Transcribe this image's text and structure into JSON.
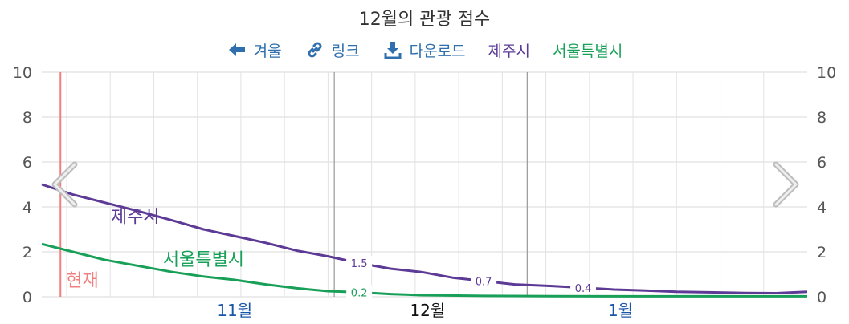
{
  "title": "12월의 관광 점수",
  "toolbar": {
    "back": {
      "label": "겨울",
      "icon": "arrow-left-icon"
    },
    "link": {
      "label": "링크",
      "icon": "link-icon"
    },
    "download": {
      "label": "다운로드",
      "icon": "download-icon"
    }
  },
  "legend": {
    "jeju": "제주시",
    "seoul": "서울특별시"
  },
  "now_label": "현재",
  "colors": {
    "jeju": "#5c3a96",
    "seoul": "#18a058",
    "now": "#f08080",
    "link": "#2f6fad",
    "month": "#1a56a8"
  },
  "chart_data": {
    "type": "line",
    "title": "12월의 관광 점수",
    "ylim": [
      0,
      10
    ],
    "yticks": [
      "0",
      "2",
      "4",
      "6",
      "8",
      "10"
    ],
    "x_start": "2023-10-15",
    "x_end": "2024-02-15",
    "month_ticks": [
      {
        "label": "11월",
        "date": "2023-11-15",
        "current": false
      },
      {
        "label": "12월",
        "date": "2023-12-16",
        "current": true
      },
      {
        "label": "1월",
        "date": "2024-01-16",
        "current": false
      }
    ],
    "now_date": "2023-10-18",
    "series": [
      {
        "name": "제주시",
        "color": "#5c3a96",
        "points": [
          [
            "2023-10-15",
            5.0
          ],
          [
            "2023-10-20",
            4.55
          ],
          [
            "2023-10-25",
            4.2
          ],
          [
            "2023-10-30",
            3.85
          ],
          [
            "2023-11-05",
            3.4
          ],
          [
            "2023-11-10",
            3.0
          ],
          [
            "2023-11-15",
            2.7
          ],
          [
            "2023-11-20",
            2.4
          ],
          [
            "2023-11-25",
            2.05
          ],
          [
            "2023-11-30",
            1.8
          ],
          [
            "2023-12-05",
            1.5
          ],
          [
            "2023-12-10",
            1.25
          ],
          [
            "2023-12-15",
            1.1
          ],
          [
            "2023-12-20",
            0.85
          ],
          [
            "2023-12-25",
            0.7
          ],
          [
            "2023-12-30",
            0.55
          ],
          [
            "2024-01-05",
            0.48
          ],
          [
            "2024-01-10",
            0.4
          ],
          [
            "2024-01-15",
            0.32
          ],
          [
            "2024-01-20",
            0.28
          ],
          [
            "2024-01-25",
            0.22
          ],
          [
            "2024-01-30",
            0.2
          ],
          [
            "2024-02-05",
            0.17
          ],
          [
            "2024-02-10",
            0.16
          ],
          [
            "2024-02-15",
            0.22
          ]
        ],
        "labels": [
          {
            "date": "2023-12-05",
            "value": 1.5,
            "text": "1.5"
          },
          {
            "date": "2023-12-25",
            "value": 0.7,
            "text": "0.7"
          },
          {
            "date": "2024-01-10",
            "value": 0.4,
            "text": "0.4"
          }
        ],
        "inline_label": {
          "date": "2023-10-30",
          "value": 3.3,
          "text": "제주시"
        }
      },
      {
        "name": "서울특별시",
        "color": "#18a058",
        "points": [
          [
            "2023-10-15",
            2.35
          ],
          [
            "2023-10-20",
            2.0
          ],
          [
            "2023-10-25",
            1.65
          ],
          [
            "2023-10-30",
            1.4
          ],
          [
            "2023-11-05",
            1.1
          ],
          [
            "2023-11-10",
            0.9
          ],
          [
            "2023-11-15",
            0.75
          ],
          [
            "2023-11-20",
            0.55
          ],
          [
            "2023-11-25",
            0.38
          ],
          [
            "2023-11-30",
            0.25
          ],
          [
            "2023-12-05",
            0.2
          ],
          [
            "2023-12-10",
            0.12
          ],
          [
            "2023-12-15",
            0.07
          ],
          [
            "2023-12-25",
            0.04
          ],
          [
            "2024-01-05",
            0.03
          ],
          [
            "2024-01-20",
            0.02
          ],
          [
            "2024-02-15",
            0.02
          ]
        ],
        "labels": [
          {
            "date": "2023-12-05",
            "value": 0.2,
            "text": "0.2"
          }
        ],
        "inline_label": {
          "date": "2023-11-10",
          "value": 1.4,
          "text": "서울특별시"
        }
      }
    ]
  }
}
